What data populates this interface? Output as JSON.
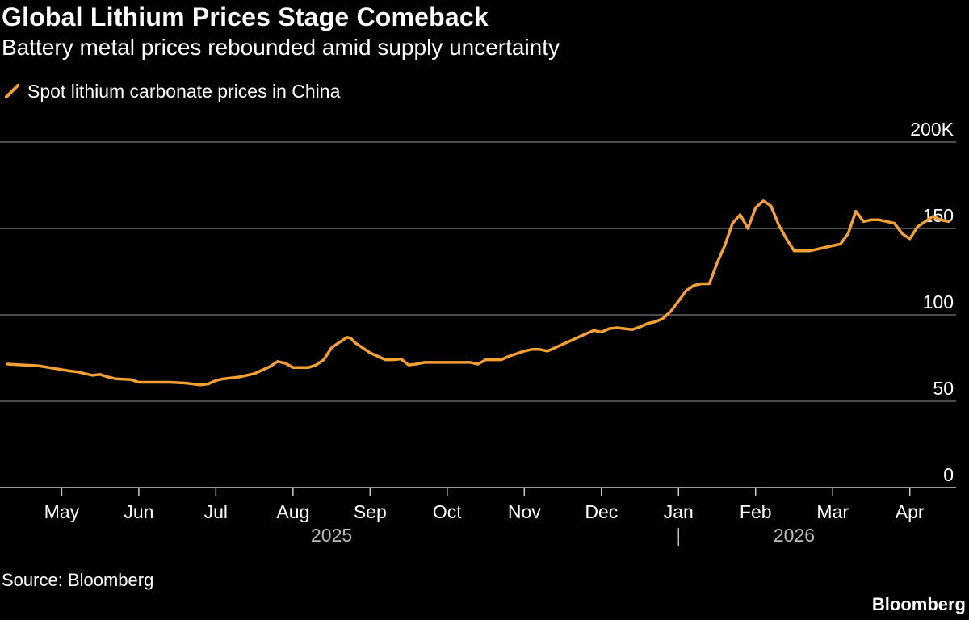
{
  "colors": {
    "background": "#000000",
    "line": "#f5a033",
    "grid": "#666666",
    "axis": "#cccccc",
    "text": "#ffffff"
  },
  "title": "Global Lithium Prices Stage Comeback",
  "subtitle": "Battery metal prices rebounded amid supply uncertainty",
  "legend": {
    "label": "Spot lithium carbonate prices in China",
    "icon": "slash-swatch-icon"
  },
  "source": "Source: Bloomberg",
  "brand": "Bloomberg",
  "chart_data": {
    "type": "line",
    "title": "Global Lithium Prices Stage Comeback",
    "xlabel": "",
    "ylabel": "",
    "ylim": [
      0,
      200
    ],
    "yticks": [
      {
        "value": 0,
        "label": "0"
      },
      {
        "value": 50,
        "label": "50"
      },
      {
        "value": 100,
        "label": "100"
      },
      {
        "value": 150,
        "label": "150"
      },
      {
        "value": 200,
        "label": "200K"
      }
    ],
    "xlim": [
      0,
      12.4
    ],
    "xticks": [
      {
        "value": 0.8,
        "label": "May"
      },
      {
        "value": 1.8,
        "label": "Jun"
      },
      {
        "value": 2.8,
        "label": "Jul"
      },
      {
        "value": 3.8,
        "label": "Aug"
      },
      {
        "value": 4.8,
        "label": "Sep"
      },
      {
        "value": 5.8,
        "label": "Oct"
      },
      {
        "value": 6.8,
        "label": "Nov"
      },
      {
        "value": 7.8,
        "label": "Dec"
      },
      {
        "value": 8.8,
        "label": "Jan"
      },
      {
        "value": 9.8,
        "label": "Feb"
      },
      {
        "value": 10.8,
        "label": "Mar"
      },
      {
        "value": 11.8,
        "label": "Apr"
      }
    ],
    "years": [
      {
        "label": "2025",
        "center": 4.3
      },
      {
        "label": "2026",
        "center": 10.3
      }
    ],
    "year_divider": 8.8,
    "series": [
      {
        "name": "Spot lithium carbonate prices in China",
        "points": [
          [
            0.1,
            71.5
          ],
          [
            0.3,
            71
          ],
          [
            0.5,
            70.5
          ],
          [
            0.7,
            69
          ],
          [
            0.9,
            67.5
          ],
          [
            1.0,
            67
          ],
          [
            1.1,
            66
          ],
          [
            1.2,
            65
          ],
          [
            1.3,
            65.5
          ],
          [
            1.4,
            64
          ],
          [
            1.5,
            63
          ],
          [
            1.7,
            62.5
          ],
          [
            1.8,
            61
          ],
          [
            2.0,
            61
          ],
          [
            2.2,
            61
          ],
          [
            2.4,
            60.5
          ],
          [
            2.6,
            59.5
          ],
          [
            2.7,
            60
          ],
          [
            2.8,
            62
          ],
          [
            2.9,
            63
          ],
          [
            3.1,
            64
          ],
          [
            3.3,
            66
          ],
          [
            3.4,
            68
          ],
          [
            3.5,
            70
          ],
          [
            3.6,
            73
          ],
          [
            3.7,
            72
          ],
          [
            3.8,
            69.5
          ],
          [
            4.0,
            69.5
          ],
          [
            4.1,
            71
          ],
          [
            4.2,
            74
          ],
          [
            4.3,
            81
          ],
          [
            4.4,
            84
          ],
          [
            4.5,
            87
          ],
          [
            4.55,
            86.5
          ],
          [
            4.6,
            84
          ],
          [
            4.7,
            81
          ],
          [
            4.8,
            78
          ],
          [
            4.9,
            76
          ],
          [
            5.0,
            74
          ],
          [
            5.1,
            74
          ],
          [
            5.2,
            74.5
          ],
          [
            5.3,
            71
          ],
          [
            5.4,
            71.5
          ],
          [
            5.5,
            72.5
          ],
          [
            5.6,
            72.5
          ],
          [
            5.8,
            72.5
          ],
          [
            6.0,
            72.5
          ],
          [
            6.1,
            72.5
          ],
          [
            6.2,
            71.5
          ],
          [
            6.3,
            74
          ],
          [
            6.5,
            74
          ],
          [
            6.6,
            76
          ],
          [
            6.8,
            79
          ],
          [
            6.9,
            80
          ],
          [
            7.0,
            80
          ],
          [
            7.1,
            79
          ],
          [
            7.2,
            81
          ],
          [
            7.3,
            83
          ],
          [
            7.4,
            85
          ],
          [
            7.5,
            87
          ],
          [
            7.6,
            89
          ],
          [
            7.7,
            91
          ],
          [
            7.8,
            90
          ],
          [
            7.9,
            92
          ],
          [
            8.0,
            92.5
          ],
          [
            8.1,
            92
          ],
          [
            8.2,
            91.5
          ],
          [
            8.3,
            93
          ],
          [
            8.4,
            95
          ],
          [
            8.5,
            96
          ],
          [
            8.6,
            98
          ],
          [
            8.7,
            102
          ],
          [
            8.8,
            108
          ],
          [
            8.9,
            114
          ],
          [
            9.0,
            117
          ],
          [
            9.1,
            118
          ],
          [
            9.2,
            118
          ],
          [
            9.3,
            130
          ],
          [
            9.4,
            140
          ],
          [
            9.5,
            153
          ],
          [
            9.6,
            158
          ],
          [
            9.7,
            150
          ],
          [
            9.8,
            162
          ],
          [
            9.9,
            166
          ],
          [
            10.0,
            163
          ],
          [
            10.1,
            152
          ],
          [
            10.2,
            144
          ],
          [
            10.3,
            137
          ],
          [
            10.5,
            137
          ],
          [
            10.7,
            139
          ],
          [
            10.9,
            141
          ],
          [
            11.0,
            147
          ],
          [
            11.1,
            160
          ],
          [
            11.2,
            154
          ],
          [
            11.3,
            155
          ],
          [
            11.4,
            155
          ],
          [
            11.5,
            154
          ],
          [
            11.6,
            153
          ],
          [
            11.7,
            147
          ],
          [
            11.8,
            144
          ],
          [
            11.9,
            151
          ],
          [
            12.0,
            154
          ],
          [
            12.1,
            157
          ],
          [
            12.2,
            155
          ],
          [
            12.3,
            154
          ]
        ]
      }
    ]
  }
}
